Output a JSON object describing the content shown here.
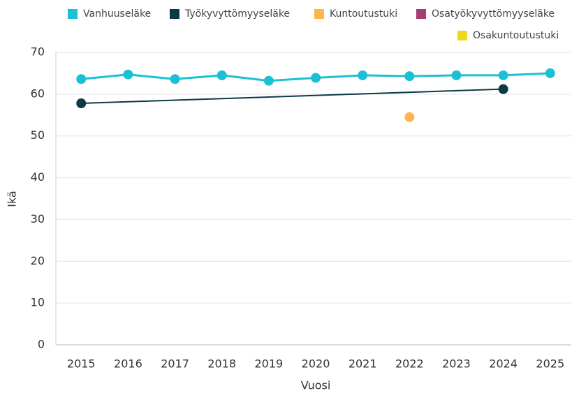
{
  "chart_data": {
    "type": "line",
    "x_label": "Vuosi",
    "y_label": "Ikä",
    "xlim": [
      2014.46,
      2025.45
    ],
    "xticks": [
      2015,
      2016,
      2017,
      2018,
      2019,
      2020,
      2021,
      2022,
      2023,
      2024,
      2025
    ],
    "ylim": [
      0,
      70
    ],
    "yticks": [
      0,
      10,
      20,
      30,
      40,
      50,
      60,
      70
    ],
    "grid": true,
    "legend": "top",
    "series": [
      {
        "name": "Vanhuuseläke",
        "color": "#1cc0d4",
        "x": [
          2015,
          2016,
          2017,
          2018,
          2019,
          2020,
          2021,
          2022,
          2023,
          2024,
          2025
        ],
        "values": [
          63.6,
          64.7,
          63.6,
          64.5,
          63.2,
          63.9,
          64.5,
          64.3,
          64.5,
          64.5,
          65.0
        ]
      },
      {
        "name": "Työkyvyttömyyseläke",
        "color": "#0b3a47",
        "x": [
          2015,
          2024
        ],
        "values": [
          57.8,
          61.2
        ]
      },
      {
        "name": "Kuntoutustuki",
        "color": "#ffb54c",
        "x": [
          2022
        ],
        "values": [
          54.5
        ]
      },
      {
        "name": "Osatyökyvyttömyyseläke",
        "color": "#a53e70",
        "x": [],
        "values": []
      },
      {
        "name": "Osakuntoutustuki",
        "color": "#ecd81c",
        "x": [],
        "values": []
      }
    ]
  }
}
